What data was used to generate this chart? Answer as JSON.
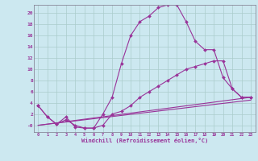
{
  "xlabel": "Windchill (Refroidissement éolien,°C)",
  "background_color": "#cce8f0",
  "grid_color": "#aacccc",
  "line_color": "#993399",
  "xlim": [
    -0.5,
    23.5
  ],
  "ylim": [
    -1.2,
    21.5
  ],
  "ytick_values": [
    0,
    2,
    4,
    6,
    8,
    10,
    12,
    14,
    16,
    18,
    20
  ],
  "ytick_labels": [
    "-0",
    "2",
    "4",
    "6",
    "8",
    "10",
    "12",
    "14",
    "16",
    "18",
    "20"
  ],
  "line1_x": [
    0,
    1,
    2,
    3,
    4,
    5,
    6,
    7,
    8,
    9,
    10,
    11,
    12,
    13,
    14,
    15,
    16,
    17,
    18,
    19,
    20,
    21,
    22,
    23
  ],
  "line1_y": [
    3.5,
    1.5,
    0.2,
    1.5,
    -0.3,
    -0.5,
    -0.5,
    2.0,
    5.0,
    11.0,
    16.0,
    18.5,
    19.5,
    21.0,
    21.5,
    21.5,
    18.5,
    15.0,
    13.5,
    13.5,
    8.5,
    6.5,
    5.0,
    5.0
  ],
  "line2_x": [
    0,
    1,
    2,
    3,
    4,
    5,
    6,
    7,
    8,
    9,
    10,
    11,
    12,
    13,
    14,
    15,
    16,
    17,
    18,
    19,
    20,
    21,
    22,
    23
  ],
  "line2_y": [
    3.5,
    1.5,
    0.2,
    1.0,
    0.0,
    -0.5,
    -0.5,
    0.0,
    2.0,
    2.5,
    3.5,
    5.0,
    6.0,
    7.0,
    8.0,
    9.0,
    10.0,
    10.5,
    11.0,
    11.5,
    11.5,
    6.5,
    5.0,
    5.0
  ],
  "line3_x": [
    0,
    23
  ],
  "line3_y": [
    0.0,
    5.0
  ],
  "line4_x": [
    0,
    23
  ],
  "line4_y": [
    0.0,
    4.5
  ]
}
